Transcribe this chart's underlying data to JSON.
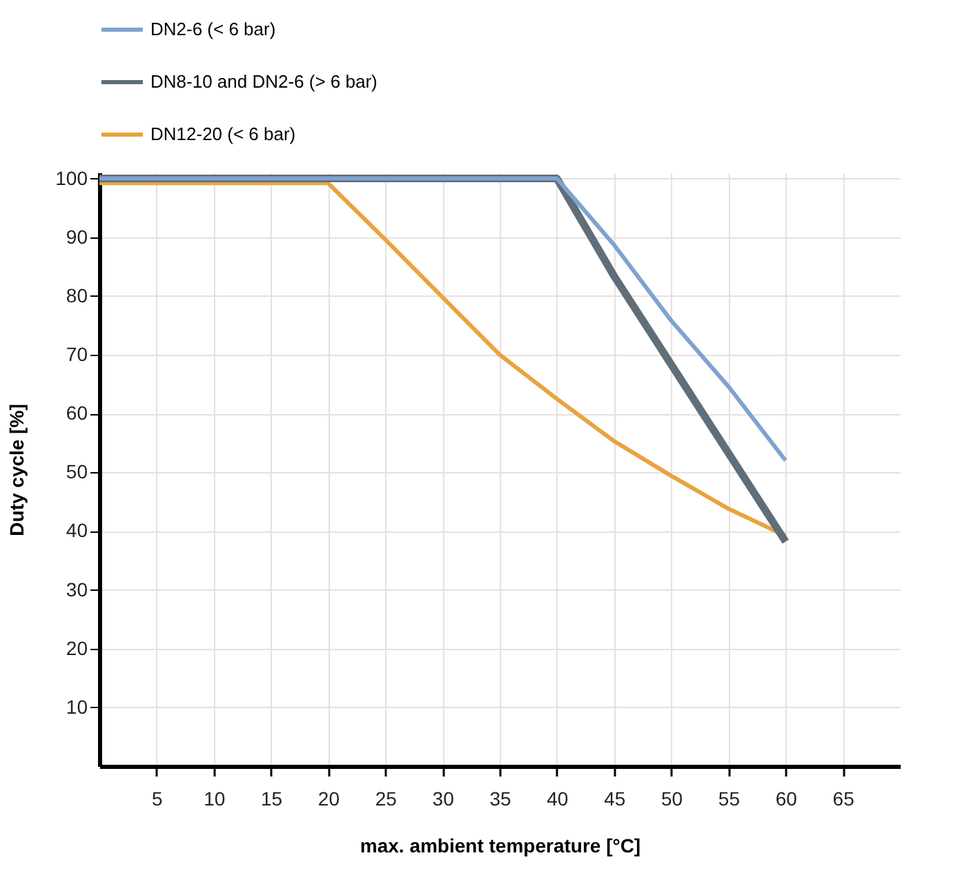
{
  "chart_data": {
    "type": "line",
    "xlabel": "max. ambient temperature [°C]",
    "ylabel": "Duty cycle [%]",
    "x": [
      0,
      5,
      10,
      15,
      20,
      25,
      30,
      35,
      40,
      45,
      50,
      55,
      60
    ],
    "series": [
      {
        "name": "DN2-6 (< 6 bar)",
        "color": "#7fa3cf",
        "values": [
          100,
          100,
          100,
          100,
          100,
          100,
          100,
          100,
          100,
          88.7,
          75.8,
          64.6,
          52
        ]
      },
      {
        "name": "DN8-10 and DN2-6 (> 6 bar)",
        "color": "#5f6e78",
        "x": [
          0,
          40,
          45,
          60
        ],
        "values": [
          100,
          100,
          83.4,
          38.2
        ]
      },
      {
        "name": "DN12-20 (< 6 bar)",
        "color": "#e8a43f",
        "values": [
          99.2,
          99.2,
          99.2,
          99.2,
          99.2,
          89.6,
          79.8,
          70,
          62.5,
          55.3,
          49.4,
          43.8,
          39.2
        ]
      }
    ],
    "xlim": [
      0,
      70
    ],
    "xticks": [
      5,
      10,
      15,
      20,
      25,
      30,
      35,
      40,
      45,
      50,
      55,
      60,
      65
    ],
    "ylim": [
      0,
      101
    ],
    "yticks": [
      10,
      20,
      30,
      40,
      50,
      60,
      70,
      80,
      90,
      100
    ],
    "grid": true,
    "legend": "top",
    "line_style": "solid",
    "marker": "none"
  }
}
